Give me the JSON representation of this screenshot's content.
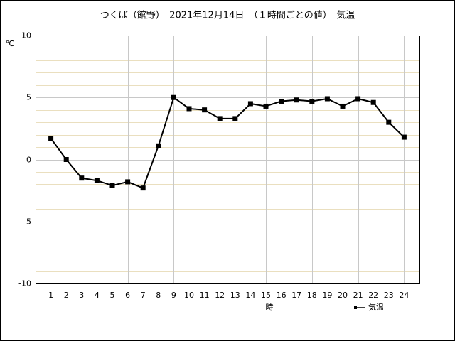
{
  "chart_data": {
    "type": "line",
    "title": "つくば（館野）　2021年12月14日　（１時間ごとの値）　気温",
    "y_label": "℃",
    "x_label": "時",
    "x": [
      1,
      2,
      3,
      4,
      5,
      6,
      7,
      8,
      9,
      10,
      11,
      12,
      13,
      14,
      15,
      16,
      17,
      18,
      19,
      20,
      21,
      22,
      23,
      24
    ],
    "series": [
      {
        "name": "気温",
        "color": "#000000",
        "values": [
          1.7,
          0.0,
          -1.5,
          -1.7,
          -2.1,
          -1.8,
          -2.3,
          1.1,
          5.0,
          4.1,
          4.0,
          3.3,
          3.3,
          4.5,
          4.3,
          4.7,
          4.8,
          4.7,
          4.9,
          4.3,
          4.9,
          4.6,
          3.0,
          1.8
        ]
      }
    ],
    "xlim": [
      0,
      25
    ],
    "xticks": [
      1,
      2,
      3,
      4,
      5,
      6,
      7,
      8,
      9,
      10,
      11,
      12,
      13,
      14,
      15,
      16,
      17,
      18,
      19,
      20,
      21,
      22,
      23,
      24
    ],
    "xgridticks": [
      3,
      6,
      9,
      12,
      15,
      18,
      21,
      24
    ],
    "ylim": [
      -10,
      10
    ],
    "yticks": [
      -10,
      -5,
      0,
      5,
      10
    ],
    "yminorticks": [
      -9,
      -8,
      -7,
      -6,
      -4,
      -3,
      -2,
      -1,
      1,
      2,
      3,
      4,
      6,
      7,
      8,
      9
    ],
    "grid": true,
    "legend": "bottom-right"
  }
}
